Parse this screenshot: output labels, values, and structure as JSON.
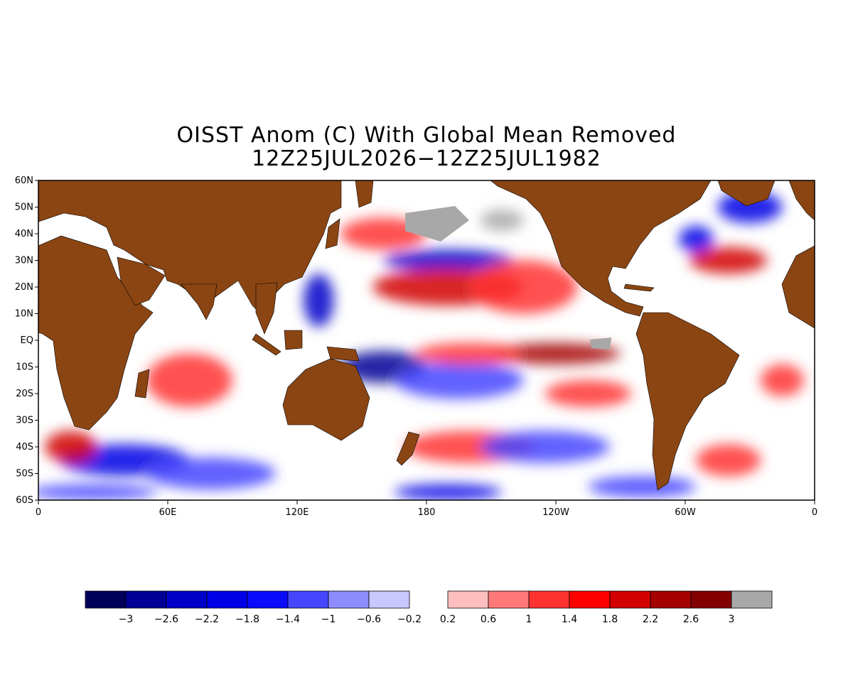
{
  "title_line1": "OISST Anom (C) With Global Mean Removed",
  "title_line2": "12Z25JUL2026−12Z25JUL1982",
  "lat_labels": [
    "60N",
    "50N",
    "40N",
    "30N",
    "20N",
    "10N",
    "EQ",
    "10S",
    "20S",
    "30S",
    "40S",
    "50S",
    "60S"
  ],
  "lon_labels": [
    "0",
    "60E",
    "120E",
    "180",
    "120W",
    "60W",
    "0"
  ],
  "colors": {
    "land": "#8b4513",
    "ocean": "#ffffff",
    "missing": "#a8a8a8",
    "palette_neg": [
      "#00005a",
      "#000096",
      "#0000c8",
      "#0000e6",
      "#0a0aff",
      "#4646ff",
      "#8c8cff",
      "#c8c8ff"
    ],
    "palette_pos": [
      "#ffbebe",
      "#ff7878",
      "#ff3232",
      "#ff0000",
      "#d20000",
      "#a50000",
      "#820000",
      "#a8a8a8"
    ]
  },
  "colorbar": {
    "neg_labels": [
      "−3",
      "−2.6",
      "−2.2",
      "−1.8",
      "−1.4",
      "−1",
      "−0.6",
      "−0.2"
    ],
    "pos_labels": [
      "0.2",
      "0.6",
      "1",
      "1.4",
      "1.8",
      "2.2",
      "2.6",
      "3"
    ]
  },
  "anomaly_features": [
    {
      "lon": 190,
      "lat": 30,
      "value": -2.2,
      "rx": 30,
      "ry": 4
    },
    {
      "lon": 190,
      "lat": 20,
      "value": 1.8,
      "rx": 35,
      "ry": 7
    },
    {
      "lon": 225,
      "lat": 20,
      "value": 1.4,
      "rx": 25,
      "ry": 10
    },
    {
      "lon": 160,
      "lat": -10,
      "value": -2.6,
      "rx": 20,
      "ry": 6
    },
    {
      "lon": 195,
      "lat": -15,
      "value": -1.4,
      "rx": 30,
      "ry": 7
    },
    {
      "lon": 240,
      "lat": -5,
      "value": 2.2,
      "rx": 30,
      "ry": 4
    },
    {
      "lon": 200,
      "lat": -5,
      "value": 1,
      "rx": 25,
      "ry": 4
    },
    {
      "lon": 255,
      "lat": -20,
      "value": 1,
      "rx": 20,
      "ry": 5
    },
    {
      "lon": 200,
      "lat": -40,
      "value": 1,
      "rx": 30,
      "ry": 6
    },
    {
      "lon": 235,
      "lat": -40,
      "value": -1,
      "rx": 30,
      "ry": 6
    },
    {
      "lon": 130,
      "lat": 15,
      "value": -2.2,
      "rx": 7,
      "ry": 10
    },
    {
      "lon": 70,
      "lat": -15,
      "value": 1,
      "rx": 20,
      "ry": 10
    },
    {
      "lon": 40,
      "lat": -45,
      "value": -1.8,
      "rx": 30,
      "ry": 6
    },
    {
      "lon": 80,
      "lat": -50,
      "value": -1.4,
      "rx": 30,
      "ry": 6
    },
    {
      "lon": 15,
      "lat": -40,
      "value": 1.8,
      "rx": 12,
      "ry": 6
    },
    {
      "lon": 320,
      "lat": 30,
      "value": 1.8,
      "rx": 18,
      "ry": 5
    },
    {
      "lon": 305,
      "lat": 38,
      "value": -1.8,
      "rx": 8,
      "ry": 5
    },
    {
      "lon": 330,
      "lat": 50,
      "value": -1.8,
      "rx": 15,
      "ry": 6
    },
    {
      "lon": 345,
      "lat": -15,
      "value": 1,
      "rx": 10,
      "ry": 6
    },
    {
      "lon": 320,
      "lat": -45,
      "value": 1,
      "rx": 15,
      "ry": 6
    },
    {
      "lon": 280,
      "lat": -55,
      "value": -1.4,
      "rx": 25,
      "ry": 4
    },
    {
      "lon": 25,
      "lat": -57,
      "value": -1.4,
      "rx": 30,
      "ry": 3
    },
    {
      "lon": 190,
      "lat": -57,
      "value": -1.8,
      "rx": 25,
      "ry": 3
    },
    {
      "lon": 160,
      "lat": 40,
      "value": 1.4,
      "rx": 20,
      "ry": 6
    },
    {
      "lon": 215,
      "lat": 45,
      "value": 3.2,
      "rx": 10,
      "ry": 4
    }
  ]
}
